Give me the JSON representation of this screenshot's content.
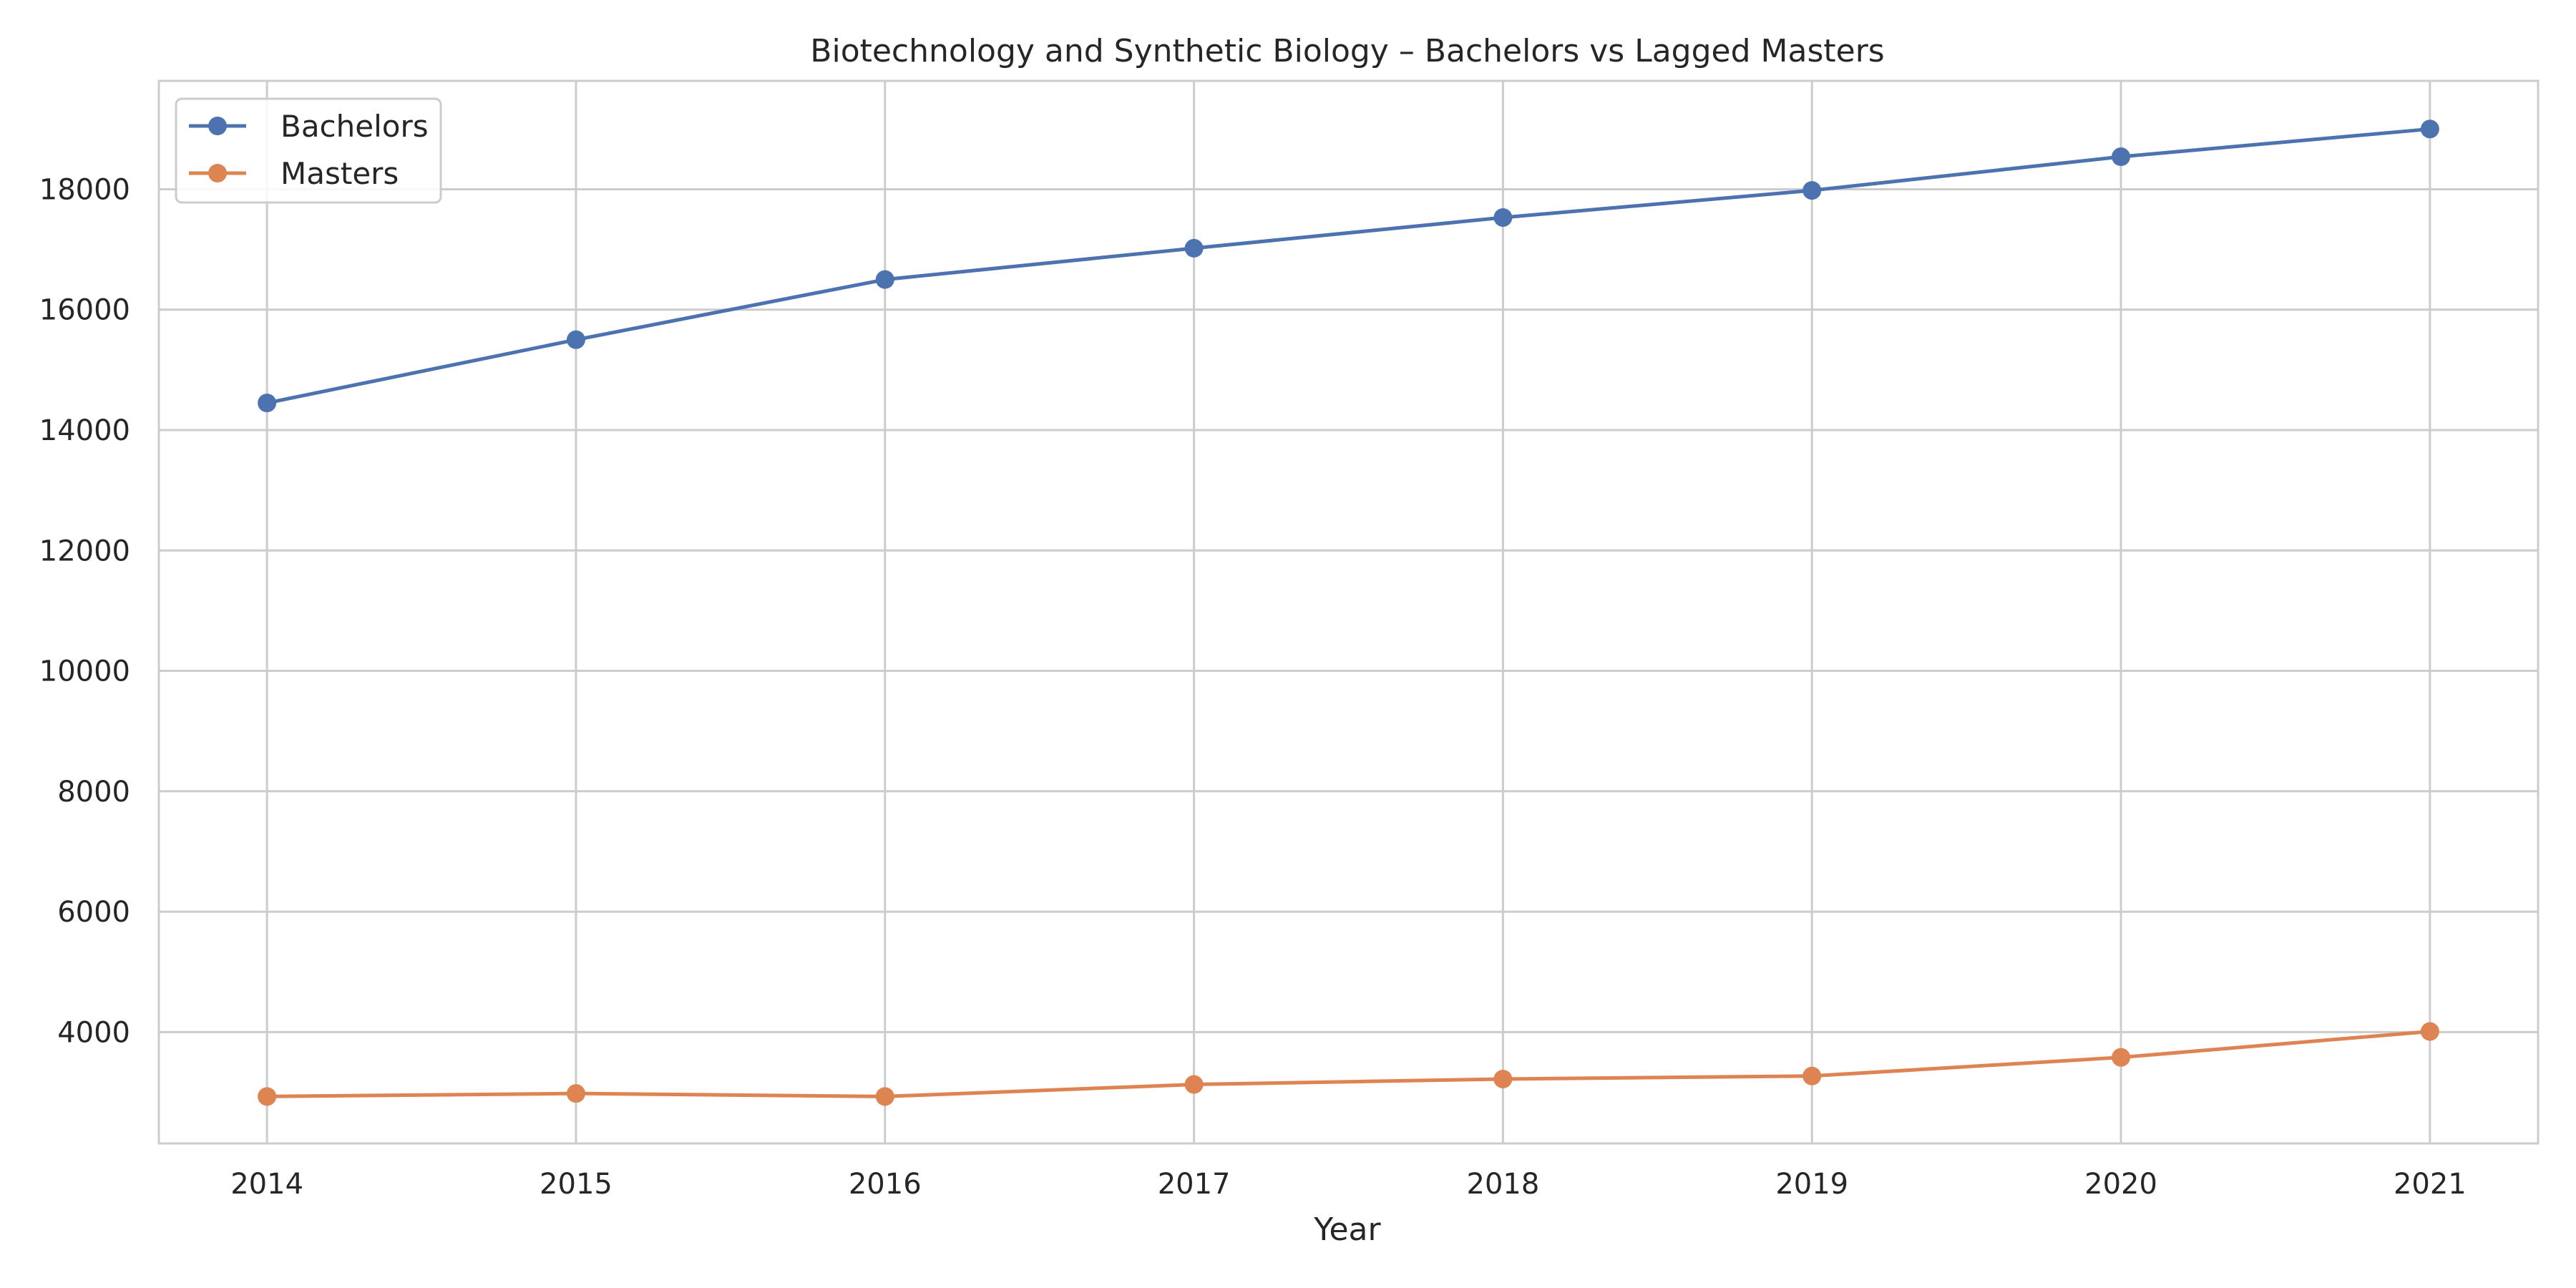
{
  "chart_data": {
    "type": "line",
    "title": "Biotechnology and Synthetic Biology – Bachelors vs Lagged Masters",
    "xlabel": "Year",
    "ylabel": "",
    "x": [
      2014,
      2015,
      2016,
      2017,
      2018,
      2019,
      2020,
      2021
    ],
    "xlim": [
      2013.65,
      2021.35
    ],
    "ylim": [
      2150,
      19800
    ],
    "yticks": [
      4000,
      6000,
      8000,
      10000,
      12000,
      14000,
      16000,
      18000
    ],
    "grid": true,
    "legend_position": "top-left",
    "series": [
      {
        "name": "Bachelors",
        "color": "#4c72b0",
        "values": [
          14450,
          15500,
          16500,
          17020,
          17530,
          17980,
          18540,
          19000
        ]
      },
      {
        "name": "Masters",
        "color": "#dd8452",
        "values": [
          2930,
          2980,
          2930,
          3130,
          3220,
          3270,
          3580,
          4010
        ]
      }
    ]
  }
}
